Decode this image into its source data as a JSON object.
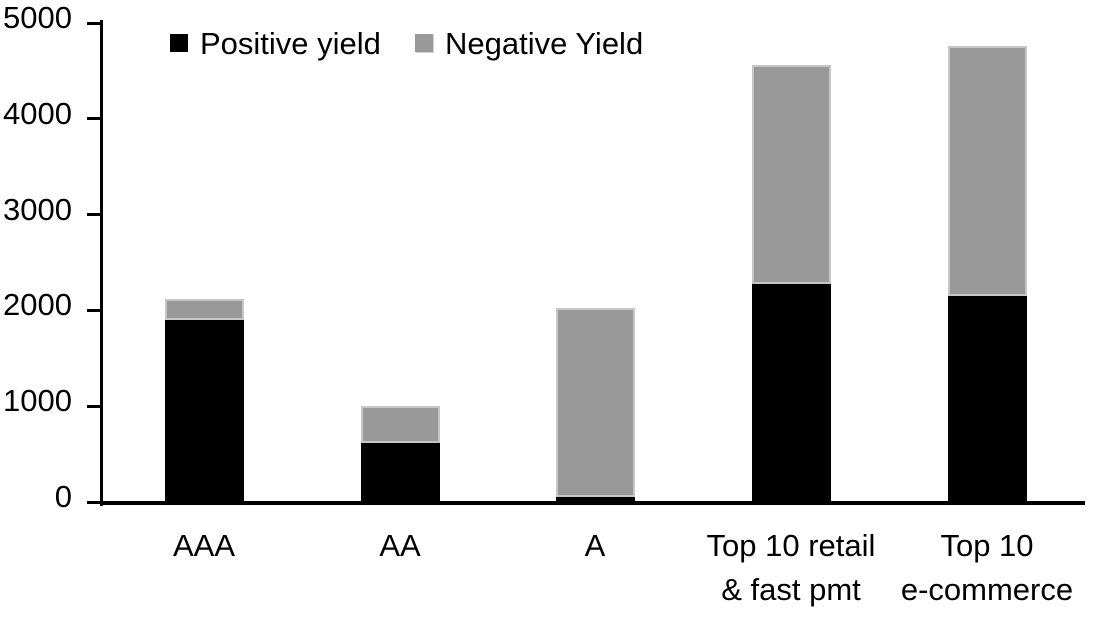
{
  "chart_data": {
    "type": "bar",
    "subtype": "stacked-vertical",
    "title": "",
    "xlabel": "",
    "ylabel": "",
    "categories": [
      "AAA",
      "AA",
      "A",
      "Top 10 retail & fast pmt",
      "Top 10 e-commerce"
    ],
    "category_label_lines": [
      [
        "AAA"
      ],
      [
        "AA"
      ],
      [
        "A"
      ],
      [
        "Top 10 retail",
        "& fast pmt"
      ],
      [
        "Top 10",
        "e-commerce"
      ]
    ],
    "series": [
      {
        "name": "Positive yield",
        "color": "#000000",
        "values": [
          1900,
          620,
          50,
          2280,
          2150
        ]
      },
      {
        "name": "Negative Yield",
        "color": "#999999",
        "values": [
          220,
          380,
          1980,
          2280,
          2610
        ]
      }
    ],
    "stack_totals": [
      2120,
      1000,
      2030,
      4560,
      4760
    ],
    "ylim": [
      0,
      5000
    ],
    "y_tick_step": 1000,
    "y_tick_labels": [
      "0",
      "1000",
      "2000",
      "3000",
      "4000",
      "5000"
    ],
    "grid": false,
    "legend_position": "top"
  },
  "legend": {
    "items": [
      {
        "label": "Positive yield",
        "color": "#000000"
      },
      {
        "label": "Negative Yield",
        "color": "#999999"
      }
    ]
  },
  "colors": {
    "positive_series": "#000000",
    "negative_series": "#999999",
    "axis": "#000000",
    "background": "#ffffff",
    "bar_border": "#c6c6c6"
  }
}
